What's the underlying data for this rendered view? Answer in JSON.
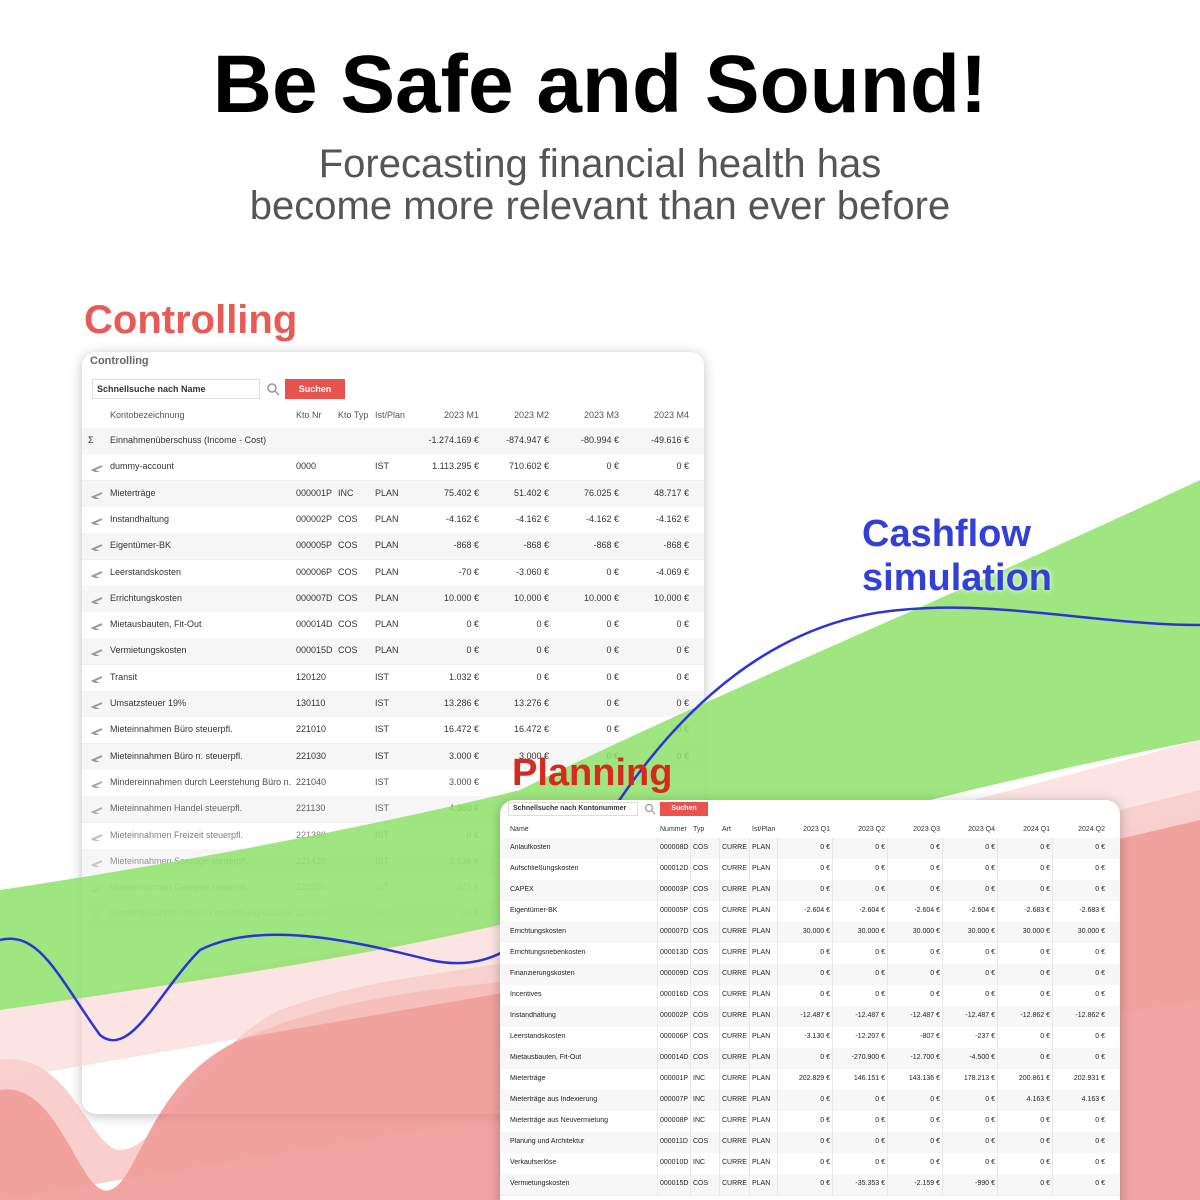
{
  "header": {
    "title": "Be Safe and Sound!",
    "subtitle_lines": [
      "Forecasting financial health has",
      "become more relevant than ever before"
    ]
  },
  "controlling": {
    "label": "Controlling",
    "panel_title": "Controlling",
    "search_placeholder": "Schnellsuche nach Name",
    "button": "Suchen",
    "columns": [
      null,
      "Kontobezeichnung",
      "Kto Nr",
      "Kto Typ",
      "Ist/Plan",
      "2023 M1",
      "2023 M2",
      "2023 M3",
      "2023 M4"
    ],
    "rows": [
      [
        "Σ",
        "Einnahmenüberschuss (Income - Cost)",
        null,
        null,
        null,
        "-1.274.169 €",
        "-874.947 €",
        "-80.994 €",
        "-49.616 €"
      ],
      [
        null,
        "dummy-account",
        "0000",
        null,
        "IST",
        "1.113.295 €",
        "710.602 €",
        "0 €",
        "0 €"
      ],
      [
        null,
        "Mieterträge",
        "000001P",
        "INC",
        "PLAN",
        "75.402 €",
        "51.402 €",
        "76.025 €",
        "48.717 €"
      ],
      [
        null,
        "Instandhaltung",
        "000002P",
        "COS",
        "PLAN",
        "-4.162 €",
        "-4.162 €",
        "-4.162 €",
        "-4.162 €"
      ],
      [
        null,
        "Eigentümer-BK",
        "000005P",
        "COS",
        "PLAN",
        "-868 €",
        "-868 €",
        "-868 €",
        "-868 €"
      ],
      [
        null,
        "Leerstandskosten",
        "000006P",
        "COS",
        "PLAN",
        "-70 €",
        "-3.060 €",
        "0 €",
        "-4.069 €"
      ],
      [
        null,
        "Errichtungskosten",
        "000007D",
        "COS",
        "PLAN",
        "10.000 €",
        "10.000 €",
        "10.000 €",
        "10.000 €"
      ],
      [
        null,
        "Mietausbauten, Fit-Out",
        "000014D",
        "COS",
        "PLAN",
        "0 €",
        "0 €",
        "0 €",
        "0 €"
      ],
      [
        null,
        "Vermietungskosten",
        "000015D",
        "COS",
        "PLAN",
        "0 €",
        "0 €",
        "0 €",
        "0 €"
      ],
      [
        null,
        "Transit",
        "120120",
        null,
        "IST",
        "1.032 €",
        "0 €",
        "0 €",
        "0 €"
      ],
      [
        null,
        "Umsatzsteuer 19%",
        "130110",
        null,
        "IST",
        "13.286 €",
        "13.276 €",
        "0 €",
        "0 €"
      ],
      [
        null,
        "Mieteinnahmen Büro steuerpfl.",
        "221010",
        null,
        "IST",
        "16.472 €",
        "16.472 €",
        "0 €",
        "0 €"
      ],
      [
        null,
        "Mieteinnahmen Büro n. steuerpfl.",
        "221030",
        null,
        "IST",
        "3.000 €",
        "3.000 €",
        "0 €",
        "0 €"
      ],
      [
        null,
        "Mindereinnahmen durch Leerstehung Büro n.",
        "221040",
        null,
        "IST",
        "3.000 €",
        null,
        null,
        null
      ],
      [
        null,
        "Mieteinnahmen Handel steuerpfl.",
        "221130",
        null,
        "IST",
        "4.360 €",
        null,
        null,
        null
      ],
      [
        null,
        "Mieteinnahmen Freizeit steuerpfl.",
        "221380",
        null,
        "IST",
        "0 €",
        null,
        null,
        null
      ],
      [
        null,
        "Mieteinnahmen Sonstige steuerpfl.",
        "221420",
        null,
        "IST",
        "3.936 €",
        null,
        null,
        null
      ],
      [
        null,
        "Mieteinnahmen Garagen steuerpfl.",
        "222050",
        null,
        "IST",
        "875 €",
        null,
        null,
        null
      ],
      [
        null,
        "Mindereinnahmen durch Leerstehung Garagen",
        "222060",
        null,
        "IST",
        "50 €",
        null,
        null,
        null
      ]
    ]
  },
  "cashflow": {
    "label_lines": [
      "Cashflow",
      "simulation"
    ]
  },
  "planning": {
    "label": "Planning",
    "search_placeholder": "Schnellsuche nach Kontonummer",
    "button": "Suchen",
    "columns": [
      "Name",
      "Nummer",
      "Typ",
      "Art",
      "Ist/Plan",
      "2023 Q1",
      "2023 Q2",
      "2023 Q3",
      "2023 Q4",
      "2024 Q1",
      "2024 Q2"
    ],
    "rows": [
      [
        "Anlaufkosten",
        "000008D",
        "COS",
        "CURRE",
        "PLAN",
        "0 €",
        "0 €",
        "0 €",
        "0 €",
        "0 €",
        "0 €"
      ],
      [
        "Aufschließungskosten",
        "000012D",
        "COS",
        "CURRE",
        "PLAN",
        "0 €",
        "0 €",
        "0 €",
        "0 €",
        "0 €",
        "0 €"
      ],
      [
        "CAPEX",
        "000003P",
        "COS",
        "CURRE",
        "PLAN",
        "0 €",
        "0 €",
        "0 €",
        "0 €",
        "0 €",
        "0 €"
      ],
      [
        "Eigentümer-BK",
        "000005P",
        "COS",
        "CURRE",
        "PLAN",
        "-2.604 €",
        "-2.604 €",
        "-2.604 €",
        "-2.604 €",
        "-2.683 €",
        "-2.683 €"
      ],
      [
        "Errichtungskosten",
        "000007D",
        "COS",
        "CURRE",
        "PLAN",
        "30.000 €",
        "30.000 €",
        "30.000 €",
        "30.000 €",
        "30.000 €",
        "30.000 €"
      ],
      [
        "Errichtungsnebenkosten",
        "000013D",
        "COS",
        "CURRE",
        "PLAN",
        "0 €",
        "0 €",
        "0 €",
        "0 €",
        "0 €",
        "0 €"
      ],
      [
        "Finanzierungskosten",
        "000009D",
        "COS",
        "CURRE",
        "PLAN",
        "0 €",
        "0 €",
        "0 €",
        "0 €",
        "0 €",
        "0 €"
      ],
      [
        "Incentives",
        "000016D",
        "COS",
        "CURRE",
        "PLAN",
        "0 €",
        "0 €",
        "0 €",
        "0 €",
        "0 €",
        "0 €"
      ],
      [
        "Instandhaltung",
        "000002P",
        "COS",
        "CURRE",
        "PLAN",
        "-12.487 €",
        "-12.487 €",
        "-12.487 €",
        "-12.487 €",
        "-12.862 €",
        "-12.862 €"
      ],
      [
        "Leerstandskosten",
        "000006P",
        "COS",
        "CURRE",
        "PLAN",
        "-3.130 €",
        "-12.207 €",
        "-807 €",
        "-237 €",
        "0 €",
        "0 €"
      ],
      [
        "Mietausbauten, Fit-Out",
        "000014D",
        "COS",
        "CURRE",
        "PLAN",
        "0 €",
        "-270.900 €",
        "-12.700 €",
        "-4.500 €",
        "0 €",
        "0 €"
      ],
      [
        "Mieterträge",
        "000001P",
        "INC",
        "CURRE",
        "PLAN",
        "202.829 €",
        "146.151 €",
        "143.136 €",
        "178.213 €",
        "200.861 €",
        "202.931 €"
      ],
      [
        "Mieterträge aus Indexierung",
        "000007P",
        "INC",
        "CURRE",
        "PLAN",
        "0 €",
        "0 €",
        "0 €",
        "0 €",
        "4.163 €",
        "4.163 €"
      ],
      [
        "Mieterträge aus Neuvermietung",
        "000008P",
        "INC",
        "CURRE",
        "PLAN",
        "0 €",
        "0 €",
        "0 €",
        "0 €",
        "0 €",
        "0 €"
      ],
      [
        "Planung und Architektur",
        "000011D",
        "COS",
        "CURRE",
        "PLAN",
        "0 €",
        "0 €",
        "0 €",
        "0 €",
        "0 €",
        "0 €"
      ],
      [
        "Verkaufserlöse",
        "000010D",
        "INC",
        "CURRE",
        "PLAN",
        "0 €",
        "0 €",
        "0 €",
        "0 €",
        "0 €",
        "0 €"
      ],
      [
        "Vermietungskosten",
        "000015D",
        "COS",
        "CURRE",
        "PLAN",
        "0 €",
        "-35.353 €",
        "-2.159 €",
        "-990 €",
        "0 €",
        "0 €"
      ]
    ]
  }
}
